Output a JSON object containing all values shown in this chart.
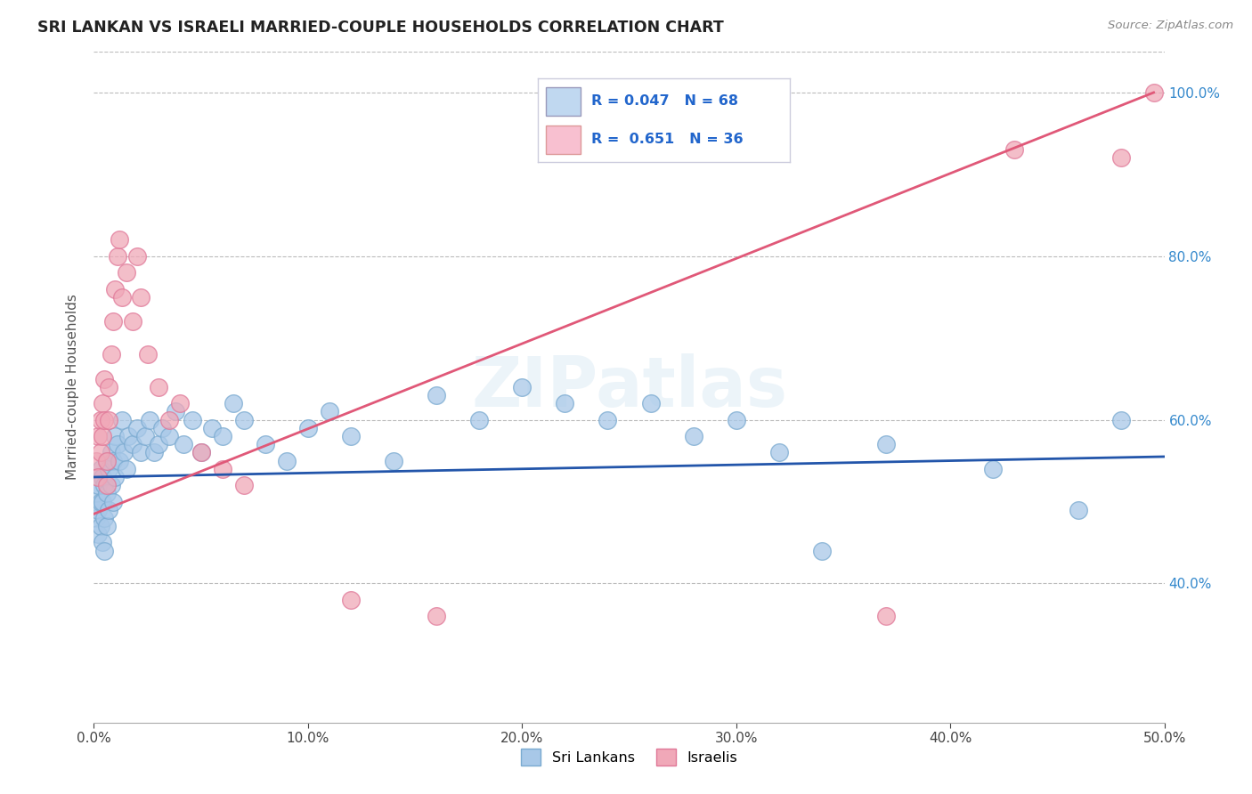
{
  "title": "SRI LANKAN VS ISRAELI MARRIED-COUPLE HOUSEHOLDS CORRELATION CHART",
  "source": "Source: ZipAtlas.com",
  "ylabel": "Married-couple Households",
  "watermark": "ZIPatlas",
  "sri_lankans_R": 0.047,
  "sri_lankans_N": 68,
  "israelis_R": 0.651,
  "israelis_N": 36,
  "sri_lankans_color": "#a8c8e8",
  "israelis_color": "#f0a8b8",
  "sri_lankans_edge_color": "#7aaad0",
  "israelis_edge_color": "#e07898",
  "sri_lankans_line_color": "#2255aa",
  "israelis_line_color": "#e05878",
  "legend_blue_fill": "#c0d8f0",
  "legend_pink_fill": "#f8c0d0",
  "background_color": "#ffffff",
  "grid_color": "#bbbbbb",
  "title_color": "#222222",
  "right_axis_color": "#3388cc",
  "xlim": [
    0.0,
    0.5
  ],
  "ylim": [
    0.23,
    1.05
  ],
  "yticks_right": [
    0.4,
    0.6,
    0.8,
    1.0
  ],
  "ytick_labels_right": [
    "40.0%",
    "60.0%",
    "80.0%",
    "100.0%"
  ],
  "xtick_labels": [
    "0.0%",
    "10.0%",
    "20.0%",
    "30.0%",
    "40.0%",
    "50.0%"
  ],
  "xtick_values": [
    0.0,
    0.1,
    0.2,
    0.3,
    0.4,
    0.5
  ],
  "sri_lankans_x": [
    0.001,
    0.001,
    0.002,
    0.002,
    0.002,
    0.003,
    0.003,
    0.003,
    0.004,
    0.004,
    0.004,
    0.005,
    0.005,
    0.005,
    0.006,
    0.006,
    0.006,
    0.007,
    0.007,
    0.008,
    0.008,
    0.009,
    0.009,
    0.01,
    0.01,
    0.011,
    0.012,
    0.013,
    0.014,
    0.015,
    0.016,
    0.018,
    0.02,
    0.022,
    0.024,
    0.026,
    0.028,
    0.03,
    0.032,
    0.035,
    0.038,
    0.042,
    0.046,
    0.05,
    0.055,
    0.06,
    0.065,
    0.07,
    0.08,
    0.09,
    0.1,
    0.11,
    0.12,
    0.14,
    0.16,
    0.18,
    0.2,
    0.22,
    0.24,
    0.26,
    0.28,
    0.3,
    0.32,
    0.34,
    0.37,
    0.42,
    0.46,
    0.48
  ],
  "sri_lankans_y": [
    0.51,
    0.48,
    0.52,
    0.49,
    0.46,
    0.54,
    0.5,
    0.47,
    0.53,
    0.5,
    0.45,
    0.52,
    0.48,
    0.44,
    0.55,
    0.51,
    0.47,
    0.54,
    0.49,
    0.56,
    0.52,
    0.55,
    0.5,
    0.58,
    0.53,
    0.57,
    0.55,
    0.6,
    0.56,
    0.54,
    0.58,
    0.57,
    0.59,
    0.56,
    0.58,
    0.6,
    0.56,
    0.57,
    0.59,
    0.58,
    0.61,
    0.57,
    0.6,
    0.56,
    0.59,
    0.58,
    0.62,
    0.6,
    0.57,
    0.55,
    0.59,
    0.61,
    0.58,
    0.55,
    0.63,
    0.6,
    0.64,
    0.62,
    0.6,
    0.62,
    0.58,
    0.6,
    0.56,
    0.44,
    0.57,
    0.54,
    0.49,
    0.6
  ],
  "israelis_x": [
    0.001,
    0.002,
    0.002,
    0.003,
    0.003,
    0.004,
    0.004,
    0.005,
    0.005,
    0.006,
    0.006,
    0.007,
    0.007,
    0.008,
    0.009,
    0.01,
    0.011,
    0.012,
    0.013,
    0.015,
    0.018,
    0.02,
    0.022,
    0.025,
    0.03,
    0.035,
    0.04,
    0.05,
    0.06,
    0.07,
    0.12,
    0.16,
    0.37,
    0.43,
    0.48,
    0.495
  ],
  "israelis_y": [
    0.55,
    0.58,
    0.53,
    0.6,
    0.56,
    0.62,
    0.58,
    0.65,
    0.6,
    0.55,
    0.52,
    0.64,
    0.6,
    0.68,
    0.72,
    0.76,
    0.8,
    0.82,
    0.75,
    0.78,
    0.72,
    0.8,
    0.75,
    0.68,
    0.64,
    0.6,
    0.62,
    0.56,
    0.54,
    0.52,
    0.38,
    0.36,
    0.36,
    0.93,
    0.92,
    1.0
  ],
  "sri_lankans_trendline": [
    0.0,
    0.5,
    0.53,
    0.555
  ],
  "israelis_trendline": [
    0.0,
    0.495,
    0.485,
    1.0
  ]
}
